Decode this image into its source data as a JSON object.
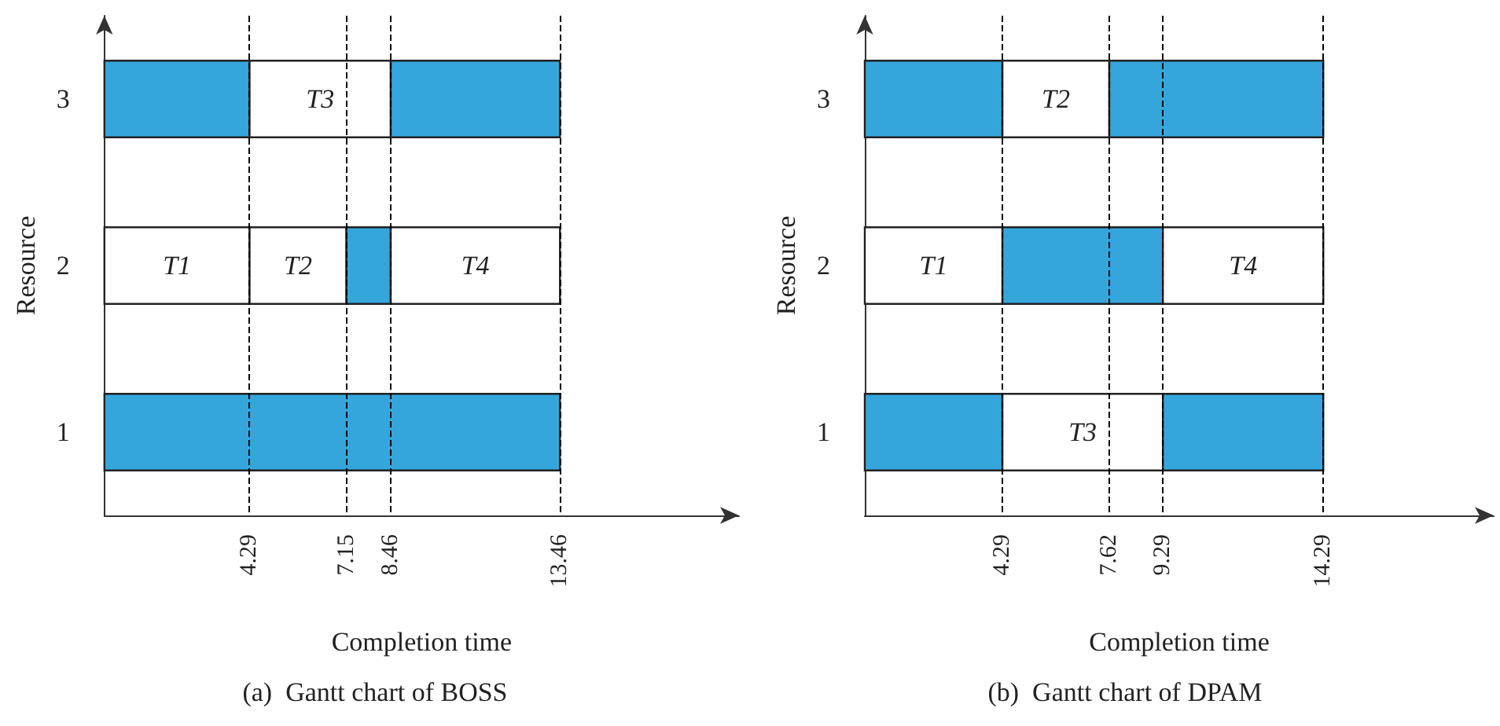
{
  "chart_data": [
    {
      "type": "bar",
      "orientation": "horizontal",
      "title": "(a)  Gantt chart of BOSS",
      "xlabel": "Completion time",
      "ylabel": "Resource",
      "categories": [
        "3",
        "2",
        "1"
      ],
      "xlim": [
        0,
        18.75
      ],
      "xticks": [
        4.29,
        7.15,
        8.46,
        13.46
      ],
      "grid": false,
      "series": [
        {
          "values": [
            4.29,
            4.29,
            13.46
          ],
          "base": [
            0,
            0,
            0
          ],
          "colors": [
            "#35a6dc",
            "#ffffff",
            "#35a6dc"
          ],
          "value_labels": [
            null,
            "T1",
            null
          ]
        },
        {
          "values": [
            4.17,
            2.86,
            null
          ],
          "base": [
            4.29,
            4.29,
            null
          ],
          "colors": [
            "#ffffff",
            "#ffffff",
            null
          ],
          "value_labels": [
            "T3",
            "T2",
            null
          ]
        },
        {
          "values": [
            5,
            1.31,
            null
          ],
          "base": [
            8.46,
            7.15,
            null
          ],
          "colors": [
            "#35a6dc",
            "#35a6dc",
            null
          ],
          "value_labels": [
            null,
            null,
            null
          ]
        },
        {
          "values": [
            null,
            5,
            null
          ],
          "base": [
            null,
            8.46,
            null
          ],
          "colors": [
            null,
            "#ffffff",
            null
          ],
          "value_labels": [
            null,
            "T4",
            null
          ]
        }
      ],
      "ref_lines": [
        {
          "axis": "x",
          "value": 4.29,
          "line_style": "dashed",
          "color": "#000000"
        },
        {
          "axis": "x",
          "value": 7.15,
          "line_style": "dashed",
          "color": "#000000"
        },
        {
          "axis": "x",
          "value": 8.46,
          "line_style": "dashed",
          "color": "#000000"
        },
        {
          "axis": "x",
          "value": 13.46,
          "line_style": "dashed",
          "color": "#000000"
        }
      ]
    },
    {
      "type": "bar",
      "orientation": "horizontal",
      "title": "(b)  Gantt chart of DPAM",
      "xlabel": "Completion time",
      "ylabel": "Resource",
      "categories": [
        "3",
        "2",
        "1"
      ],
      "xlim": [
        0,
        19.6
      ],
      "xticks": [
        4.29,
        7.62,
        9.29,
        14.29
      ],
      "grid": false,
      "series": [
        {
          "values": [
            4.29,
            4.29,
            4.29
          ],
          "base": [
            0,
            0,
            0
          ],
          "colors": [
            "#35a6dc",
            "#ffffff",
            "#35a6dc"
          ],
          "value_labels": [
            null,
            "T1",
            null
          ]
        },
        {
          "values": [
            3.33,
            5,
            5
          ],
          "base": [
            4.29,
            4.29,
            4.29
          ],
          "colors": [
            "#ffffff",
            "#35a6dc",
            "#ffffff"
          ],
          "value_labels": [
            "T2",
            null,
            "T3"
          ]
        },
        {
          "values": [
            6.67,
            5,
            5
          ],
          "base": [
            7.62,
            9.29,
            9.29
          ],
          "colors": [
            "#35a6dc",
            "#ffffff",
            "#35a6dc"
          ],
          "value_labels": [
            null,
            "T4",
            null
          ]
        }
      ],
      "ref_lines": [
        {
          "axis": "x",
          "value": 4.29,
          "line_style": "dashed",
          "color": "#000000"
        },
        {
          "axis": "x",
          "value": 7.62,
          "line_style": "dashed",
          "color": "#000000"
        },
        {
          "axis": "x",
          "value": 9.29,
          "line_style": "dashed",
          "color": "#000000"
        },
        {
          "axis": "x",
          "value": 14.29,
          "line_style": "dashed",
          "color": "#000000"
        }
      ]
    }
  ]
}
